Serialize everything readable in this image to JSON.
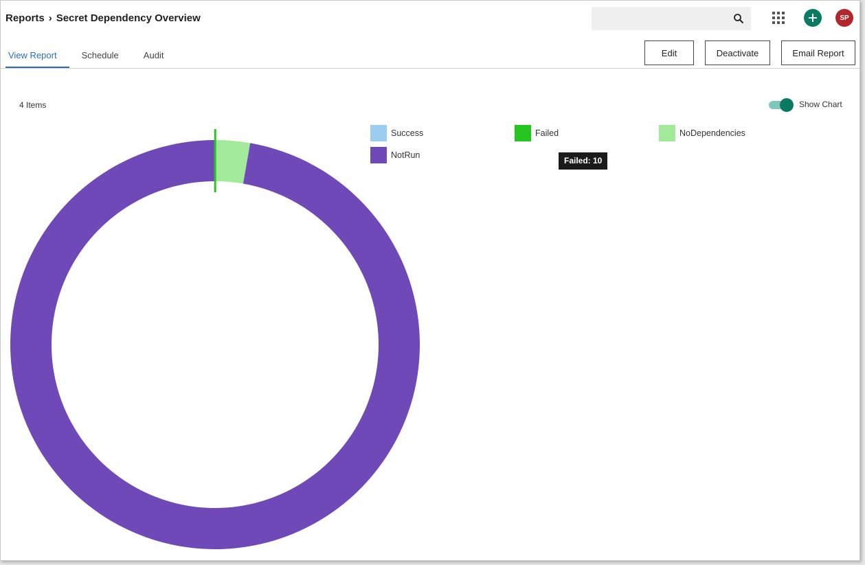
{
  "header": {
    "breadcrumb_root": "Reports",
    "page_title": "Secret Dependency Overview",
    "avatar_initials": "SP"
  },
  "tabs": [
    {
      "label": "View Report",
      "active": true
    },
    {
      "label": "Schedule",
      "active": false
    },
    {
      "label": "Audit",
      "active": false
    }
  ],
  "actions": {
    "edit_label": "Edit",
    "deactivate_label": "Deactivate",
    "email_label": "Email Report"
  },
  "report": {
    "items_count": "4 Items",
    "show_chart_label": "Show Chart",
    "show_chart_on": true
  },
  "tooltip": {
    "text": "Failed: 10"
  },
  "colors": {
    "accent_teal": "#0b7a63",
    "avatar_red": "#b3262b",
    "tab_active": "#2b6cc4"
  },
  "chart_data": {
    "type": "pie",
    "donut": true,
    "categories": [
      "Success",
      "Failed",
      "NoDependencies",
      "NotRun"
    ],
    "values": [
      0,
      10,
      1200,
      42800
    ],
    "colors": [
      "#9bcdf0",
      "#27c51f",
      "#a2e99a",
      "#6f49b8"
    ],
    "legend_position": "top-right"
  }
}
